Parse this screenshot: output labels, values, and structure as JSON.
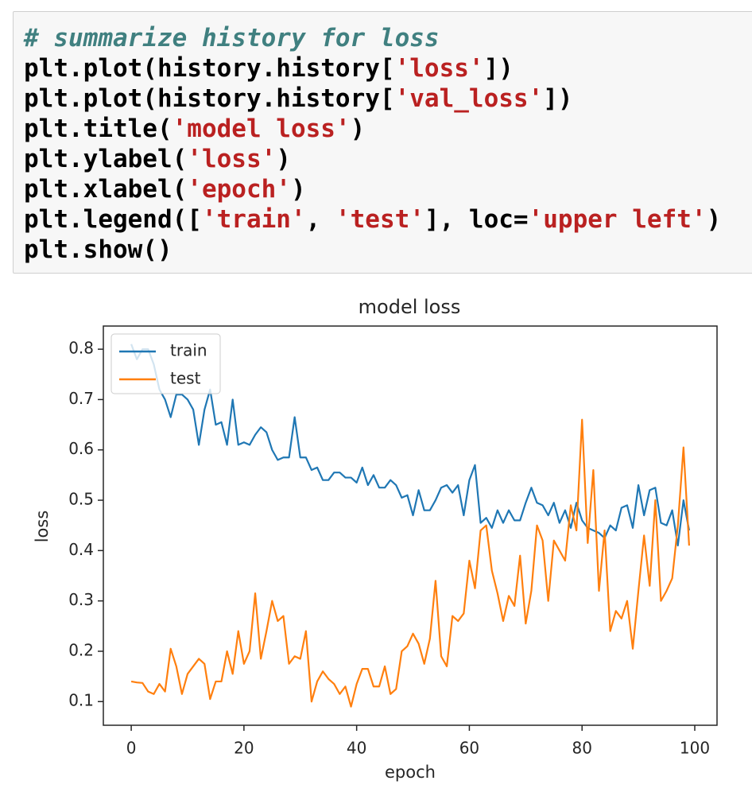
{
  "code_cell": {
    "lines": [
      [
        {
          "text": "# summarize history for loss",
          "color": "#408080",
          "italic": true
        }
      ],
      [
        {
          "text": "plt.plot(history.history[",
          "color": "#000000"
        },
        {
          "text": "'loss'",
          "color": "#ba2121"
        },
        {
          "text": "])",
          "color": "#000000"
        }
      ],
      [
        {
          "text": "plt.plot(history.history[",
          "color": "#000000"
        },
        {
          "text": "'val_loss'",
          "color": "#ba2121"
        },
        {
          "text": "])",
          "color": "#000000"
        }
      ],
      [
        {
          "text": "plt.title(",
          "color": "#000000"
        },
        {
          "text": "'model loss'",
          "color": "#ba2121"
        },
        {
          "text": ")",
          "color": "#000000"
        }
      ],
      [
        {
          "text": "plt.ylabel(",
          "color": "#000000"
        },
        {
          "text": "'loss'",
          "color": "#ba2121"
        },
        {
          "text": ")",
          "color": "#000000"
        }
      ],
      [
        {
          "text": "plt.xlabel(",
          "color": "#000000"
        },
        {
          "text": "'epoch'",
          "color": "#ba2121"
        },
        {
          "text": ")",
          "color": "#000000"
        }
      ],
      [
        {
          "text": "plt.legend([",
          "color": "#000000"
        },
        {
          "text": "'train'",
          "color": "#ba2121"
        },
        {
          "text": ", ",
          "color": "#000000"
        },
        {
          "text": "'test'",
          "color": "#ba2121"
        },
        {
          "text": "], loc=",
          "color": "#000000"
        },
        {
          "text": "'upper left'",
          "color": "#ba2121"
        },
        {
          "text": ")",
          "color": "#000000"
        }
      ],
      [
        {
          "text": "plt.show()",
          "color": "#000000"
        }
      ]
    ]
  },
  "chart_data": {
    "type": "line",
    "title": "model loss",
    "x_label": "epoch",
    "y_label": "loss",
    "x": [
      0,
      1,
      2,
      3,
      4,
      5,
      6,
      7,
      8,
      9,
      10,
      11,
      12,
      13,
      14,
      15,
      16,
      17,
      18,
      19,
      20,
      21,
      22,
      23,
      24,
      25,
      26,
      27,
      28,
      29,
      30,
      31,
      32,
      33,
      34,
      35,
      36,
      37,
      38,
      39,
      40,
      41,
      42,
      43,
      44,
      45,
      46,
      47,
      48,
      49,
      50,
      51,
      52,
      53,
      54,
      55,
      56,
      57,
      58,
      59,
      60,
      61,
      62,
      63,
      64,
      65,
      66,
      67,
      68,
      69,
      70,
      71,
      72,
      73,
      74,
      75,
      76,
      77,
      78,
      79,
      80,
      81,
      82,
      83,
      84,
      85,
      86,
      87,
      88,
      89,
      90,
      91,
      92,
      93,
      94,
      95,
      96,
      97,
      98,
      99
    ],
    "series": [
      {
        "name": "train",
        "color": "#1f77b4",
        "values": [
          0.81,
          0.78,
          0.8,
          0.8,
          0.77,
          0.72,
          0.7,
          0.665,
          0.71,
          0.71,
          0.7,
          0.68,
          0.61,
          0.68,
          0.72,
          0.65,
          0.655,
          0.61,
          0.7,
          0.61,
          0.615,
          0.61,
          0.63,
          0.645,
          0.635,
          0.6,
          0.58,
          0.585,
          0.585,
          0.665,
          0.585,
          0.585,
          0.56,
          0.565,
          0.54,
          0.54,
          0.555,
          0.555,
          0.545,
          0.545,
          0.535,
          0.565,
          0.53,
          0.55,
          0.525,
          0.525,
          0.54,
          0.53,
          0.505,
          0.51,
          0.47,
          0.52,
          0.48,
          0.48,
          0.5,
          0.525,
          0.53,
          0.515,
          0.53,
          0.47,
          0.54,
          0.57,
          0.455,
          0.465,
          0.445,
          0.48,
          0.455,
          0.48,
          0.46,
          0.46,
          0.495,
          0.525,
          0.495,
          0.49,
          0.47,
          0.495,
          0.455,
          0.48,
          0.445,
          0.495,
          0.46,
          0.445,
          0.44,
          0.435,
          0.425,
          0.45,
          0.44,
          0.485,
          0.49,
          0.445,
          0.53,
          0.47,
          0.52,
          0.525,
          0.455,
          0.45,
          0.48,
          0.41,
          0.5,
          0.44
        ]
      },
      {
        "name": "test",
        "color": "#ff7f0e",
        "values": [
          0.14,
          0.138,
          0.137,
          0.12,
          0.115,
          0.135,
          0.12,
          0.205,
          0.17,
          0.115,
          0.155,
          0.17,
          0.185,
          0.175,
          0.105,
          0.14,
          0.14,
          0.2,
          0.155,
          0.24,
          0.175,
          0.2,
          0.315,
          0.185,
          0.24,
          0.3,
          0.26,
          0.27,
          0.175,
          0.19,
          0.185,
          0.24,
          0.1,
          0.14,
          0.16,
          0.145,
          0.135,
          0.115,
          0.13,
          0.09,
          0.135,
          0.165,
          0.165,
          0.13,
          0.13,
          0.17,
          0.115,
          0.125,
          0.2,
          0.21,
          0.235,
          0.215,
          0.175,
          0.225,
          0.34,
          0.19,
          0.17,
          0.27,
          0.26,
          0.275,
          0.38,
          0.325,
          0.44,
          0.45,
          0.36,
          0.315,
          0.26,
          0.31,
          0.29,
          0.39,
          0.255,
          0.32,
          0.45,
          0.42,
          0.3,
          0.42,
          0.4,
          0.38,
          0.49,
          0.44,
          0.66,
          0.415,
          0.56,
          0.32,
          0.44,
          0.24,
          0.28,
          0.265,
          0.3,
          0.205,
          0.32,
          0.43,
          0.33,
          0.5,
          0.3,
          0.32,
          0.345,
          0.45,
          0.605,
          0.41
        ]
      }
    ],
    "xlim": [
      -4.95,
      103.95
    ],
    "xticks": [
      0,
      20,
      40,
      60,
      80,
      100
    ],
    "ylim": [
      0.053,
      0.846
    ],
    "yticks": [
      0.1,
      0.2,
      0.3,
      0.4,
      0.5,
      0.6,
      0.7,
      0.8
    ],
    "legend": "upper left"
  }
}
